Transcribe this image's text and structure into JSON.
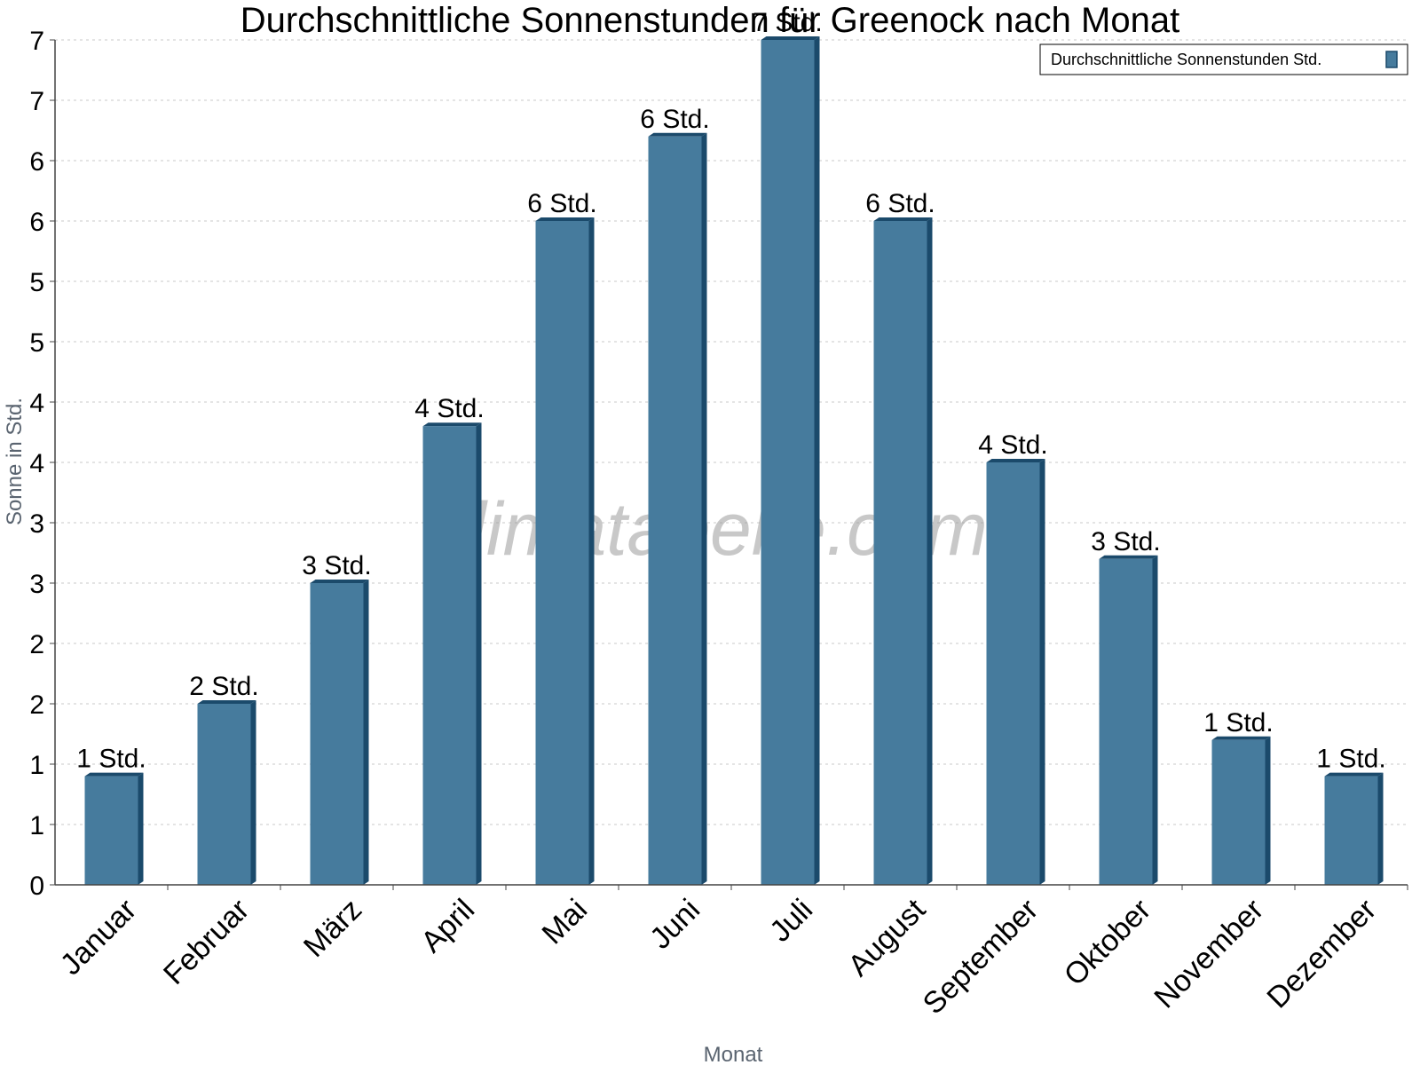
{
  "chart_data": {
    "type": "bar",
    "title": "Durchschnittliche Sonnenstunden für Greenock nach Monat",
    "xlabel": "Monat",
    "ylabel": "Sonne in Std.",
    "categories": [
      "Januar",
      "Februar",
      "März",
      "April",
      "Mai",
      "Juni",
      "Juli",
      "August",
      "September",
      "Oktober",
      "November",
      "Dezember"
    ],
    "series": [
      {
        "name": "Durchschnittliche Sonnenstunden Std.",
        "values": [
          0.9,
          1.5,
          2.5,
          3.8,
          5.5,
          6.2,
          7.0,
          5.5,
          3.5,
          2.7,
          1.2,
          0.9
        ],
        "labels": [
          "1 Std.",
          "2 Std.",
          "3 Std.",
          "4 Std.",
          "6 Std.",
          "6 Std.",
          "7 Std.",
          "6 Std.",
          "4 Std.",
          "3 Std.",
          "1 Std.",
          "1 Std."
        ]
      }
    ],
    "ylim": [
      0,
      7
    ],
    "ytick_values": [
      0,
      0.5,
      1,
      1.5,
      2,
      2.5,
      3,
      3.5,
      4,
      4.5,
      5,
      5.5,
      6,
      6.5,
      7
    ],
    "ytick_labels": [
      "0",
      "1",
      "1",
      "2",
      "2",
      "3",
      "3",
      "4",
      "4",
      "5",
      "5",
      "6",
      "6",
      "7",
      "7"
    ],
    "grid": true,
    "legend_position": "top-right",
    "bar_color": "#467b9d",
    "bar_side_color": "#1b4a6b"
  },
  "watermark": "klimatabelle.com"
}
